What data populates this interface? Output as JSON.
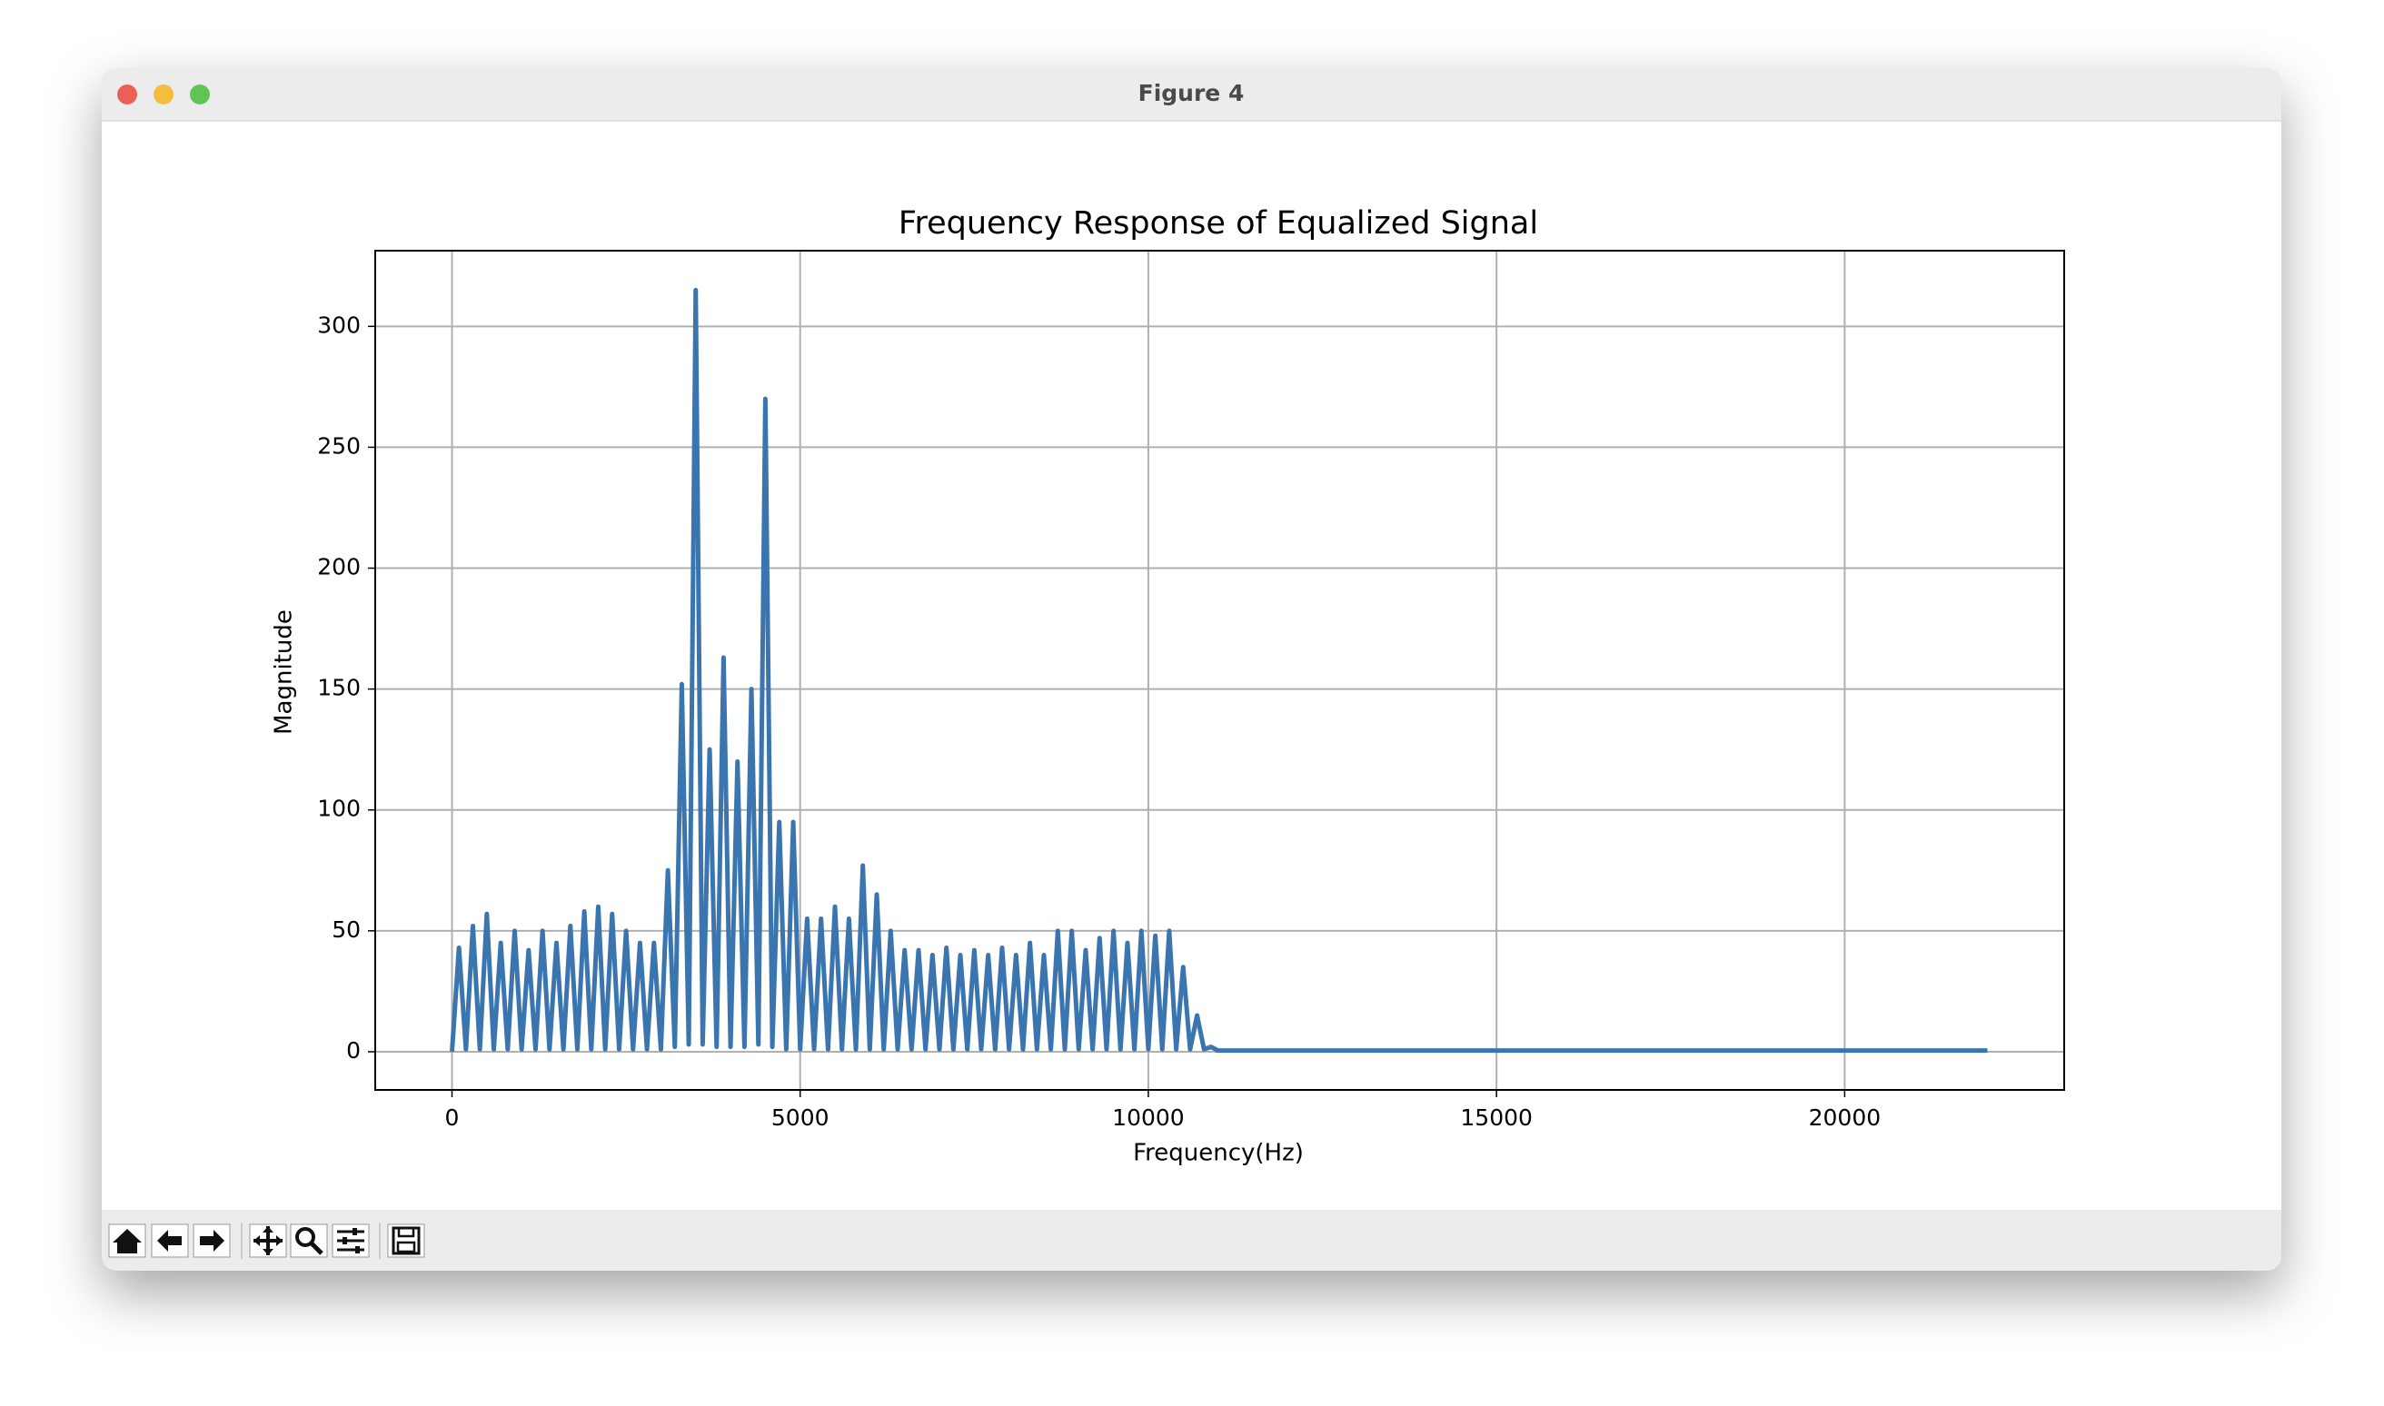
{
  "window": {
    "title": "Figure 4"
  },
  "chart_data": {
    "type": "line",
    "title": "Frequency Response of Equalized Signal",
    "x_label": "Frequency(Hz)",
    "y_label": "Magnitude",
    "color": "#3b75af",
    "grid": true,
    "xlim": [
      -1102.5,
      23152.5
    ],
    "ylim": [
      -15.8,
      331.3
    ],
    "xticks": [
      0,
      5000,
      10000,
      15000,
      20000
    ],
    "yticks": [
      0,
      50,
      100,
      150,
      200,
      250,
      300
    ],
    "x": [
      0,
      100,
      200,
      300,
      400,
      500,
      600,
      700,
      800,
      900,
      1000,
      1100,
      1200,
      1300,
      1400,
      1500,
      1600,
      1700,
      1800,
      1900,
      2000,
      2100,
      2200,
      2300,
      2400,
      2500,
      2600,
      2700,
      2800,
      2900,
      3000,
      3100,
      3200,
      3300,
      3400,
      3500,
      3600,
      3700,
      3800,
      3900,
      4000,
      4100,
      4200,
      4300,
      4400,
      4500,
      4600,
      4700,
      4800,
      4900,
      5000,
      5100,
      5200,
      5300,
      5400,
      5500,
      5600,
      5700,
      5800,
      5900,
      6000,
      6100,
      6200,
      6300,
      6400,
      6500,
      6600,
      6700,
      6800,
      6900,
      7000,
      7100,
      7200,
      7300,
      7400,
      7500,
      7600,
      7700,
      7800,
      7900,
      8000,
      8100,
      8200,
      8300,
      8400,
      8500,
      8600,
      8700,
      8800,
      8900,
      9000,
      9100,
      9200,
      9300,
      9400,
      9500,
      9600,
      9700,
      9800,
      9900,
      10000,
      10100,
      10200,
      10300,
      10400,
      10500,
      10600,
      10700,
      10800,
      10900,
      11000,
      22050
    ],
    "values": [
      0,
      43,
      1,
      52,
      1,
      57,
      1,
      45,
      1,
      50,
      1,
      42,
      1,
      50,
      1,
      45,
      1,
      52,
      1,
      58,
      1,
      60,
      1,
      57,
      1,
      50,
      1,
      45,
      1,
      45,
      1,
      75,
      2,
      152,
      3,
      315,
      3,
      125,
      2,
      163,
      2,
      120,
      2,
      150,
      3,
      270,
      2,
      95,
      1,
      95,
      1,
      55,
      1,
      55,
      1,
      60,
      1,
      55,
      1,
      77,
      1,
      65,
      1,
      50,
      1,
      42,
      1,
      42,
      1,
      40,
      1,
      43,
      1,
      40,
      1,
      42,
      1,
      40,
      1,
      43,
      1,
      40,
      1,
      45,
      1,
      40,
      1,
      50,
      1,
      50,
      1,
      42,
      1,
      47,
      1,
      50,
      1,
      45,
      1,
      50,
      1,
      48,
      1,
      50,
      1,
      35,
      1,
      15,
      1,
      2,
      0.5,
      0.5
    ]
  }
}
